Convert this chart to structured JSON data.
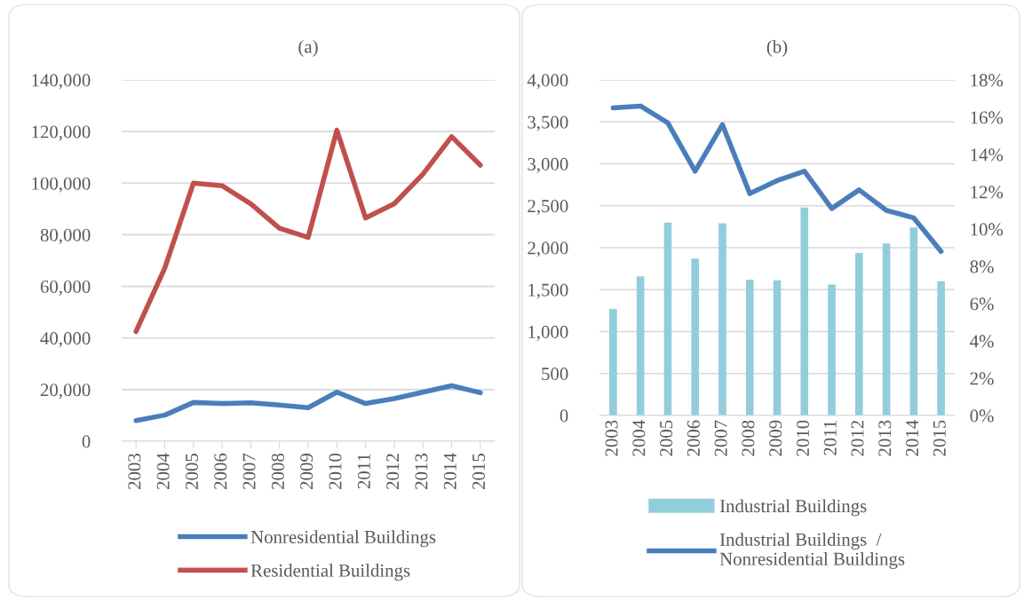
{
  "chart_data": [
    {
      "type": "line",
      "title": "(a)",
      "categories": [
        "2003",
        "2004",
        "2005",
        "2006",
        "2007",
        "2008",
        "2009",
        "2010",
        "2011",
        "2012",
        "2013",
        "2014",
        "2015"
      ],
      "series": [
        {
          "name": "Nonresidential Buildings",
          "color": "#4a7ebb",
          "values": [
            8000,
            10100,
            15000,
            14600,
            14900,
            14000,
            13000,
            19000,
            14600,
            16500,
            19000,
            21500,
            18800
          ]
        },
        {
          "name": "Residential Buildings",
          "color": "#c0504d",
          "values": [
            42500,
            67000,
            100000,
            99000,
            92000,
            82500,
            79000,
            120500,
            86500,
            92000,
            103500,
            118000,
            107000
          ]
        }
      ],
      "ylim": [
        0,
        140000
      ],
      "yticks": [
        {
          "value": 0,
          "label": "0"
        },
        {
          "value": 20000,
          "label": "20,000"
        },
        {
          "value": 40000,
          "label": "40,000"
        },
        {
          "value": 60000,
          "label": "60,000"
        },
        {
          "value": 80000,
          "label": "80,000"
        },
        {
          "value": 100000,
          "label": "100,000"
        },
        {
          "value": 120000,
          "label": "120,000"
        },
        {
          "value": 140000,
          "label": "140,000"
        }
      ],
      "grid": "y",
      "legend": "bottom"
    },
    {
      "type": "bar",
      "title": "(b)",
      "categories": [
        "2003",
        "2004",
        "2005",
        "2006",
        "2007",
        "2008",
        "2009",
        "2010",
        "2011",
        "2012",
        "2013",
        "2014",
        "2015"
      ],
      "series": [
        {
          "name": "Industrial Buildings",
          "color": "#92cddc",
          "values": [
            1270,
            1660,
            2300,
            1870,
            2290,
            1620,
            1610,
            2480,
            1560,
            1940,
            2050,
            2240,
            1600
          ]
        },
        {
          "name": "Industrial Buildings  /\nNonresidential Buildings",
          "type": "line",
          "axis": "y2",
          "color": "#4a7ebb",
          "values": [
            16.5,
            16.6,
            15.7,
            13.1,
            15.6,
            11.9,
            12.6,
            13.1,
            11.1,
            12.1,
            11.0,
            10.6,
            8.8
          ]
        }
      ],
      "ylim": [
        0,
        4000
      ],
      "yticks": [
        {
          "value": 0,
          "label": "0"
        },
        {
          "value": 500,
          "label": "500"
        },
        {
          "value": 1000,
          "label": "1,000"
        },
        {
          "value": 1500,
          "label": "1,500"
        },
        {
          "value": 2000,
          "label": "2,000"
        },
        {
          "value": 2500,
          "label": "2,500"
        },
        {
          "value": 3000,
          "label": "3,000"
        },
        {
          "value": 3500,
          "label": "3,500"
        },
        {
          "value": 4000,
          "label": "4,000"
        }
      ],
      "y2lim": [
        0,
        18
      ],
      "y2ticks": [
        {
          "value": 0,
          "label": "0%"
        },
        {
          "value": 2,
          "label": "2%"
        },
        {
          "value": 4,
          "label": "4%"
        },
        {
          "value": 6,
          "label": "6%"
        },
        {
          "value": 8,
          "label": "8%"
        },
        {
          "value": 10,
          "label": "10%"
        },
        {
          "value": 12,
          "label": "12%"
        },
        {
          "value": 14,
          "label": "14%"
        },
        {
          "value": 16,
          "label": "16%"
        },
        {
          "value": 18,
          "label": "18%"
        }
      ],
      "grid": "y",
      "legend": "bottom"
    }
  ]
}
